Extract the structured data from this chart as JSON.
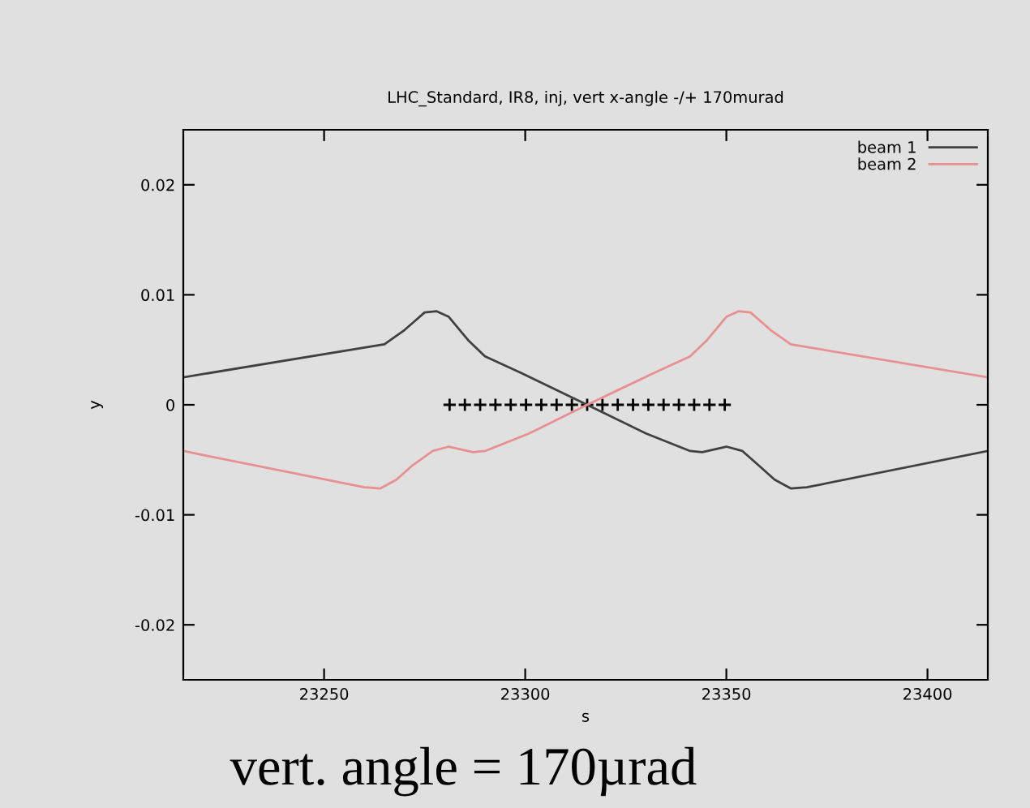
{
  "chart_data": {
    "type": "line",
    "title": "LHC_Standard, IR8, inj, vert x-angle -/+ 170murad",
    "xlabel": "s",
    "ylabel": "y",
    "xlim": [
      23215,
      23415
    ],
    "ylim": [
      -0.025,
      0.025
    ],
    "xticks": [
      23250,
      23300,
      23350,
      23400
    ],
    "yticks": [
      -0.02,
      -0.01,
      0,
      0.01,
      0.02
    ],
    "grid": false,
    "legend": "top right",
    "marker": "none",
    "line_style": "solid",
    "series": [
      {
        "name": "beam 1",
        "color": "#404040",
        "x": [
          23215,
          23265,
          23270,
          23275,
          23278,
          23281,
          23286,
          23290,
          23299,
          23315.4,
          23330,
          23341,
          23344,
          23350,
          23354,
          23358,
          23362,
          23366,
          23370,
          23415
        ],
        "values": [
          0.0025,
          0.0055,
          0.0068,
          0.0084,
          0.0085,
          0.008,
          0.0058,
          0.0044,
          0.0029,
          0,
          -0.0026,
          -0.0042,
          -0.0043,
          -0.0038,
          -0.0042,
          -0.0055,
          -0.0068,
          -0.0076,
          -0.0075,
          -0.0042
        ]
      },
      {
        "name": "beam 2",
        "color": "#e89090",
        "x": [
          23215,
          23260,
          23264,
          23268,
          23272,
          23277,
          23281,
          23287,
          23290,
          23301,
          23315.4,
          23332,
          23341,
          23345,
          23350,
          23353,
          23356,
          23361,
          23366,
          23415
        ],
        "values": [
          -0.0042,
          -0.0075,
          -0.0076,
          -0.0068,
          -0.0055,
          -0.0042,
          -0.0038,
          -0.0043,
          -0.0042,
          -0.0026,
          0,
          0.0029,
          0.0044,
          0.0058,
          0.008,
          0.0085,
          0.0084,
          0.0068,
          0.0055,
          0.0025
        ]
      },
      {
        "type": "scatter",
        "marker": "cross",
        "color": "#000000",
        "x": [
          23281.2,
          23285,
          23288.8,
          23292.6,
          23296.4,
          23300.2,
          23304,
          23307.8,
          23311.6,
          23315.4,
          23319.2,
          23323,
          23326.8,
          23330.6,
          23334.4,
          23338.2,
          23342,
          23345.8,
          23349.6
        ],
        "values": [
          0,
          0,
          0,
          0,
          0,
          0,
          0,
          0,
          0,
          0,
          0,
          0,
          0,
          0,
          0,
          0,
          0,
          0,
          0
        ]
      }
    ],
    "annotations": [
      "vert. angle = 170µrad"
    ]
  }
}
